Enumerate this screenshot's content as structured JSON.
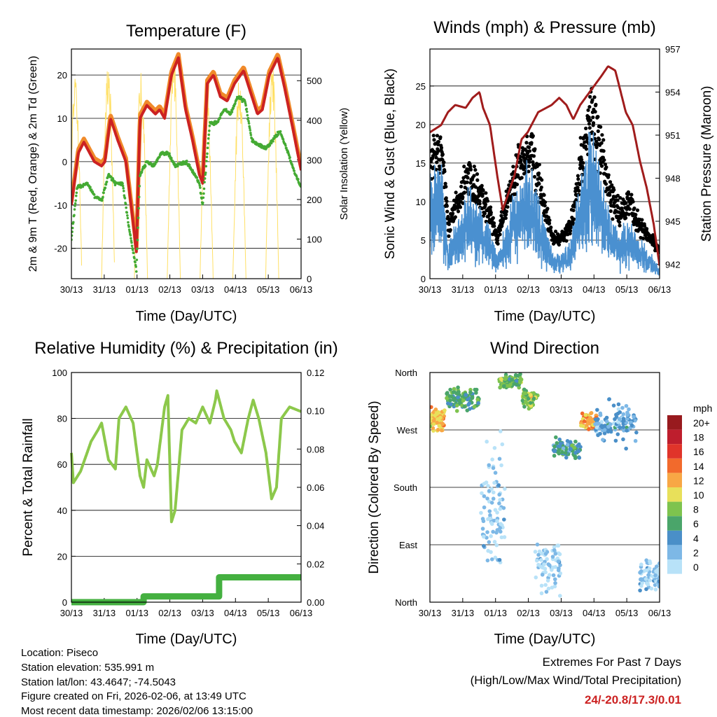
{
  "panels": {
    "temperature": {
      "title": "Temperature (F)",
      "xlabel": "Time (Day/UTC)",
      "ylabel": "2m & 9m T (Red, Orange) & 2m Td (Green)",
      "y2label": "Solar Insolation (Yellow)"
    },
    "winds": {
      "title": "Winds (mph) & Pressure (mb)",
      "xlabel": "Time (Day/UTC)",
      "ylabel": "Sonic Wind & Gust (Blue, Black)",
      "y2label": "Station Pressure (Maroon)"
    },
    "humidity": {
      "title": "Relative Humidity (%) & Precipitation (in)",
      "xlabel": "Time (Day/UTC)",
      "ylabel": "Percent & Total Rainfall"
    },
    "direction": {
      "title": "Wind Direction",
      "xlabel": "Time (Day/UTC)",
      "ylabel": "Direction (Colored By Speed)"
    }
  },
  "footer": {
    "location": "Location: Piseco",
    "elevation": "Station elevation: 535.991 m",
    "latlon": "Station lat/lon: 43.4647; -74.5043",
    "created": "Figure created on Fri, 2026-02-06, at 13:49 UTC",
    "timestamp": "Most recent data timestamp: 2026/02/06 13:15:00",
    "extremes_title": "Extremes For Past 7 Days",
    "extremes_sub": "(High/Low/Max Wind/Total Precipitation)",
    "extremes_value": "24/-20.8/17.3/0.01"
  },
  "colors": {
    "temp": "#cc2222",
    "temp9m": "#f08a2a",
    "dew": "#44aa33",
    "solar": "#ffe066",
    "gust": "#000000",
    "wind": "#4a90d0",
    "pressure": "#a01c1c",
    "rh": "#8cc84b",
    "precip": "#44b040",
    "extreme": "#cc2222"
  },
  "chart_data": [
    {
      "type": "line",
      "title": "Temperature (F)",
      "xlabel": "Time (Day/UTC)",
      "ylabel": "2m & 9m T (Red, Orange) & 2m Td (Green)",
      "y2label": "Solar Insolation (Yellow)",
      "x_ticks": [
        "30/13",
        "31/13",
        "01/13",
        "02/13",
        "03/13",
        "04/13",
        "05/13",
        "06/13"
      ],
      "ylim": [
        -27,
        26
      ],
      "y_ticks": [
        -20,
        -10,
        0,
        10,
        20
      ],
      "y2lim": [
        0,
        580
      ],
      "y2_ticks": [
        0,
        100,
        200,
        300,
        400,
        500
      ],
      "grid": true,
      "series": [
        {
          "name": "2m T",
          "x": [
            0,
            0.21,
            0.38,
            0.7,
            0.92,
            1.02,
            1.19,
            1.41,
            1.66,
            1.88,
            1.98,
            2.09,
            2.3,
            2.56,
            2.69,
            2.84,
            3.05,
            3.26,
            3.48,
            3.69,
            3.9,
            4.0,
            4.14,
            4.33,
            4.54,
            4.75,
            4.97,
            5.25,
            5.46,
            5.67,
            5.82,
            6.03,
            6.29,
            6.5,
            6.74,
            7.0
          ],
          "y": [
            -10,
            2,
            4.5,
            0,
            -1,
            0,
            10,
            5,
            0,
            -14,
            -20.8,
            10,
            13,
            11,
            12,
            10,
            20,
            24,
            12,
            5,
            -3,
            -5,
            18,
            20,
            15,
            14,
            18,
            21,
            16,
            11,
            12,
            20,
            24,
            17,
            8,
            -2
          ]
        },
        {
          "name": "Td",
          "x": [
            0,
            0.17,
            0.49,
            0.7,
            0.92,
            1.13,
            1.34,
            1.56,
            1.77,
            1.98,
            2.09,
            2.3,
            2.52,
            2.73,
            2.94,
            3.16,
            3.48,
            3.69,
            3.9,
            4.0,
            4.22,
            4.43,
            4.65,
            4.86,
            5.07,
            5.29,
            5.5,
            5.67,
            5.93,
            6.14,
            6.35,
            6.56,
            6.78,
            7.0
          ],
          "y": [
            -18,
            -6,
            -5,
            -8,
            -9,
            -3,
            -5,
            -5,
            -16,
            -25,
            -3,
            0,
            -1,
            2,
            2,
            -1,
            0,
            -2,
            -5,
            -10,
            9,
            9,
            12,
            11,
            15,
            14,
            5,
            4,
            3,
            5,
            7,
            3,
            -2,
            -6
          ]
        },
        {
          "name": "Solar",
          "peak_day_offset": 0.12,
          "peaks": [
            520,
            550,
            520,
            560,
            505,
            515,
            545
          ]
        }
      ]
    },
    {
      "type": "scatter+line",
      "title": "Winds (mph) & Pressure (mb)",
      "xlabel": "Time (Day/UTC)",
      "ylabel": "Sonic Wind & Gust (Blue, Black)",
      "y2label": "Station Pressure (Maroon)",
      "x_ticks": [
        "30/13",
        "31/13",
        "01/13",
        "02/13",
        "03/13",
        "04/13",
        "05/13",
        "06/13"
      ],
      "ylim": [
        0,
        29.8
      ],
      "y_ticks": [
        0,
        5,
        10,
        15,
        20,
        25
      ],
      "y2lim": [
        941,
        957
      ],
      "y2_ticks": [
        942,
        945,
        948,
        951,
        954,
        957
      ],
      "grid": true,
      "wind_mean": {
        "x": [
          0,
          0.34,
          0.55,
          0.87,
          1.19,
          1.83,
          2.05,
          2.37,
          2.69,
          3.11,
          3.43,
          3.75,
          3.97,
          4.29,
          4.6,
          4.92,
          5.12,
          5.44,
          5.76,
          6.08,
          6.4,
          6.72,
          7.0
        ],
        "y": [
          8,
          10,
          3,
          5,
          7,
          4,
          2,
          5,
          8,
          9,
          5,
          2,
          2,
          3,
          8,
          12,
          10,
          6,
          4,
          5,
          3,
          2,
          1
        ]
      },
      "pressure": {
        "x": [
          0,
          0.34,
          0.55,
          0.77,
          1.09,
          1.3,
          1.51,
          1.62,
          1.83,
          2.05,
          2.22,
          2.37,
          2.58,
          2.79,
          2.98,
          3.3,
          3.71,
          3.94,
          4.16,
          4.37,
          4.58,
          4.9,
          5.22,
          5.43,
          5.65,
          5.75,
          5.97,
          6.18,
          6.4,
          6.61,
          6.82,
          7.0
        ],
        "y": [
          951.2,
          951.7,
          952.6,
          953.1,
          952.9,
          953.6,
          954,
          952.9,
          951.7,
          948.2,
          945.8,
          946.8,
          948.2,
          950.7,
          951.2,
          952.6,
          953.1,
          953.6,
          953.1,
          952.1,
          953.1,
          954.1,
          955.1,
          955.8,
          955.5,
          954.6,
          952.6,
          951.7,
          949.2,
          947.3,
          944.8,
          941.9
        ]
      }
    },
    {
      "type": "line",
      "title": "Relative Humidity (%) & Precipitation (in)",
      "xlabel": "Time (Day/UTC)",
      "ylabel": "Percent & Total Rainfall",
      "x_ticks": [
        "30/13",
        "31/13",
        "01/13",
        "02/13",
        "03/13",
        "04/13",
        "05/13",
        "06/13"
      ],
      "ylim": [
        0,
        100
      ],
      "y_ticks": [
        0,
        20,
        40,
        60,
        80,
        100
      ],
      "y2lim": [
        0,
        0.12
      ],
      "y2_ticks": [
        "0.00",
        "0.02",
        "0.04",
        "0.06",
        "0.08",
        "0.10",
        "0.12"
      ],
      "grid": true,
      "series": [
        {
          "name": "RH",
          "x": [
            0,
            0.06,
            0.28,
            0.6,
            0.81,
            0.92,
            1.13,
            1.34,
            1.45,
            1.66,
            1.88,
            2.09,
            2.2,
            2.3,
            2.52,
            2.62,
            2.84,
            2.94,
            3.05,
            3.16,
            3.37,
            3.58,
            3.79,
            4.0,
            4.22,
            4.39,
            4.43,
            4.65,
            4.86,
            4.97,
            5.18,
            5.39,
            5.54,
            5.71,
            5.93,
            6.1,
            6.25,
            6.4,
            6.65,
            7.0
          ],
          "y": [
            65,
            52,
            57,
            70,
            75,
            78,
            62,
            58,
            80,
            85,
            78,
            55,
            50,
            62,
            55,
            60,
            85,
            90,
            35,
            40,
            75,
            80,
            78,
            85,
            78,
            88,
            92,
            80,
            75,
            70,
            65,
            80,
            88,
            80,
            65,
            45,
            50,
            80,
            85,
            83
          ]
        },
        {
          "name": "Precip",
          "x": [
            0,
            2.2,
            2.2,
            4.5,
            4.5,
            7.0
          ],
          "y": [
            0,
            0,
            0.003,
            0.003,
            0.013,
            0.013
          ]
        }
      ]
    },
    {
      "type": "scatter",
      "title": "Wind Direction",
      "xlabel": "Time (Day/UTC)",
      "ylabel": "Direction (Colored By Speed)",
      "x_ticks": [
        "30/13",
        "31/13",
        "01/13",
        "02/13",
        "03/13",
        "04/13",
        "05/13",
        "06/13"
      ],
      "y_ticks": [
        "North",
        "East",
        "South",
        "West",
        "North"
      ],
      "ylim": [
        0,
        360
      ],
      "grid": true,
      "clusters": [
        {
          "t0": 0,
          "t1": 0.45,
          "dir": 285,
          "spread": 25,
          "speed": 12,
          "n": 70
        },
        {
          "t0": 0.5,
          "t1": 1.5,
          "dir": 320,
          "spread": 25,
          "speed": 7,
          "n": 110
        },
        {
          "t0": 1.55,
          "t1": 2.3,
          "dir": 150,
          "spread": 150,
          "speed": 2,
          "n": 90
        },
        {
          "t0": 2.1,
          "t1": 2.8,
          "dir": 345,
          "spread": 15,
          "speed": 8,
          "n": 80
        },
        {
          "t0": 2.8,
          "t1": 3.3,
          "dir": 320,
          "spread": 20,
          "speed": 9,
          "n": 60
        },
        {
          "t0": 3.2,
          "t1": 4.0,
          "dir": 60,
          "spread": 60,
          "speed": 2,
          "n": 70
        },
        {
          "t0": 3.75,
          "t1": 4.6,
          "dir": 240,
          "spread": 20,
          "speed": 6,
          "n": 90
        },
        {
          "t0": 4.6,
          "t1": 5.1,
          "dir": 285,
          "spread": 20,
          "speed": 13,
          "n": 60
        },
        {
          "t0": 5.0,
          "t1": 6.3,
          "dir": 280,
          "spread": 50,
          "speed": 4,
          "n": 110
        },
        {
          "t0": 6.4,
          "t1": 7.0,
          "dir": 40,
          "spread": 30,
          "speed": 2,
          "n": 70
        }
      ],
      "legend": {
        "title": "mph",
        "labels": [
          "20+",
          "18",
          "16",
          "14",
          "12",
          "10",
          "8",
          "6",
          "4",
          "2",
          "0"
        ],
        "colors": [
          "#981a1e",
          "#be1e2d",
          "#e0342a",
          "#f26a2c",
          "#f8a745",
          "#e8e05a",
          "#7ec34e",
          "#4aa56a",
          "#4a8fc8",
          "#7db8e6",
          "#b8e2f8"
        ]
      }
    }
  ]
}
